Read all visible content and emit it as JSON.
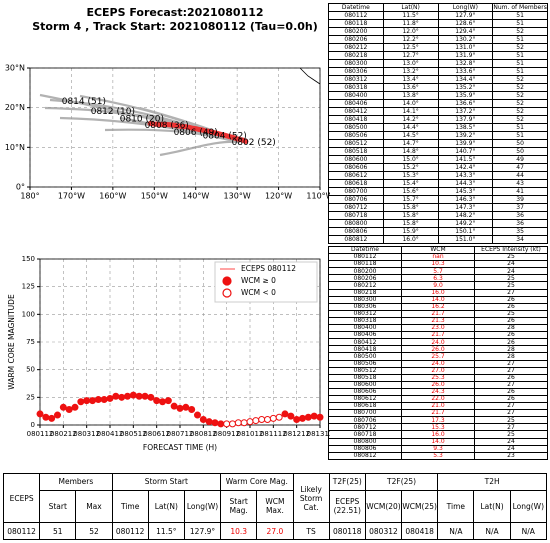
{
  "chart_data": [
    {
      "type": "line",
      "title": "ECEPS Forecast:2021080112",
      "subtitle": "Storm 4 , Track Start: 2021080112 (Tau=0.0h)",
      "x": [
        127.9,
        128.6,
        129.4,
        130.2,
        131.0,
        131.9,
        132.8,
        133.6,
        134.4,
        135.2,
        135.9,
        136.6,
        137.2,
        137.9,
        138.5,
        139.2,
        139.9,
        140.7,
        141.5,
        142.4,
        143.3,
        144.3,
        145.3,
        146.3,
        147.3,
        148.2,
        149.2,
        150.1,
        151.0
      ],
      "values": [
        11.5,
        11.8,
        12.0,
        12.2,
        12.5,
        12.7,
        13.0,
        13.2,
        13.4,
        13.6,
        13.8,
        14.0,
        14.1,
        14.2,
        14.4,
        14.5,
        14.7,
        14.8,
        15.0,
        15.2,
        15.3,
        15.4,
        15.6,
        15.7,
        15.8,
        15.8,
        15.8,
        15.9,
        16.0
      ],
      "color": "#ee3333",
      "xlim": [
        180,
        110
      ],
      "ylim": [
        0,
        30
      ],
      "xticks": [
        {
          "value": 180,
          "label": "180°"
        },
        {
          "value": 170,
          "label": "170°W"
        },
        {
          "value": 160,
          "label": "160°W"
        },
        {
          "value": 150,
          "label": "150°W"
        },
        {
          "value": 140,
          "label": "140°W"
        },
        {
          "value": 130,
          "label": "130°W"
        },
        {
          "value": 120,
          "label": "120°W"
        },
        {
          "value": 110,
          "label": "110°W"
        }
      ],
      "yticks": [
        {
          "value": 0,
          "label": "0°"
        },
        {
          "value": 10,
          "label": "10°N"
        },
        {
          "value": 20,
          "label": "20°N"
        },
        {
          "value": 30,
          "label": "30°N"
        }
      ],
      "grid": true,
      "annotations": [
        {
          "text": "0814 (51)",
          "x": 167,
          "y": 21.5
        },
        {
          "text": "0812 (10)",
          "x": 160,
          "y": 19
        },
        {
          "text": "0810 (20)",
          "x": 153,
          "y": 17.2
        },
        {
          "text": "0808 (36)",
          "x": 147,
          "y": 15.5
        },
        {
          "text": "0806 (49)",
          "x": 140,
          "y": 13.8
        },
        {
          "text": "0804 (52)",
          "x": 133,
          "y": 12.8
        },
        {
          "text": "0802 (52)",
          "x": 126,
          "y": 11.2
        }
      ]
    },
    {
      "type": "scatter",
      "xlabel": "FORECAST TIME (H)",
      "ylabel": "WARM CORE MAGNITUDE",
      "xlim": [
        0,
        288
      ],
      "ylim": [
        0,
        150
      ],
      "xticks": [
        {
          "value": 0,
          "label": "080112"
        },
        {
          "value": 24,
          "label": "080212"
        },
        {
          "value": 48,
          "label": "080312"
        },
        {
          "value": 72,
          "label": "080412"
        },
        {
          "value": 96,
          "label": "080512"
        },
        {
          "value": 120,
          "label": "080612"
        },
        {
          "value": 144,
          "label": "080712"
        },
        {
          "value": 168,
          "label": "080812"
        },
        {
          "value": 192,
          "label": "080912"
        },
        {
          "value": 216,
          "label": "081012"
        },
        {
          "value": 240,
          "label": "081112"
        },
        {
          "value": 264,
          "label": "081212"
        },
        {
          "value": 288,
          "label": "081312"
        }
      ],
      "yticks": [
        0,
        25,
        50,
        75,
        100,
        125,
        150
      ],
      "grid": true,
      "legend": "upper right",
      "series": [
        {
          "name": "ECEPS 080112",
          "color": "#ff6666",
          "style": "line",
          "x": [],
          "values": []
        },
        {
          "name": "WCM ≥ 0",
          "color": "#ee1111",
          "style": "filled",
          "x": [
            0,
            6,
            12,
            18,
            24,
            30,
            36,
            42,
            48,
            54,
            60,
            66,
            72,
            78,
            84,
            90,
            96,
            102,
            108,
            114,
            120,
            126,
            132,
            138,
            144,
            150,
            156,
            162,
            168,
            174,
            180,
            186,
            252,
            258,
            264,
            270,
            276,
            282,
            288
          ],
          "values": [
            10,
            7,
            6,
            9,
            16,
            14,
            16,
            21,
            22,
            22,
            23,
            23,
            24,
            26,
            25,
            26,
            27,
            26,
            26,
            25,
            22,
            21,
            22,
            17,
            15,
            16,
            14,
            9,
            5,
            3,
            2,
            1,
            10,
            8,
            5,
            6,
            7,
            8,
            7
          ]
        },
        {
          "name": "WCM < 0",
          "color": "#ee1111",
          "style": "hollow",
          "x": [
            192,
            198,
            204,
            210,
            216,
            222,
            228,
            234,
            240,
            246
          ],
          "values": [
            1,
            1,
            2,
            2,
            3,
            4,
            5,
            5,
            6,
            7
          ]
        }
      ]
    }
  ],
  "track_table": {
    "header": [
      "Datetime",
      "Lat(N)",
      "Long(W)",
      "Num. of Members"
    ],
    "rows": [
      [
        "080112",
        "11.5°",
        "127.9°",
        "51"
      ],
      [
        "080118",
        "11.8°",
        "128.6°",
        "51"
      ],
      [
        "080200",
        "12.0°",
        "129.4°",
        "52"
      ],
      [
        "080206",
        "12.2°",
        "130.2°",
        "51"
      ],
      [
        "080212",
        "12.5°",
        "131.0°",
        "52"
      ],
      [
        "080218",
        "12.7°",
        "131.9°",
        "51"
      ],
      [
        "080300",
        "13.0°",
        "132.8°",
        "51"
      ],
      [
        "080306",
        "13.2°",
        "133.6°",
        "51"
      ],
      [
        "080312",
        "13.4°",
        "134.4°",
        "52"
      ],
      [
        "080318",
        "13.6°",
        "135.2°",
        "52"
      ],
      [
        "080400",
        "13.8°",
        "135.9°",
        "52"
      ],
      [
        "080406",
        "14.0°",
        "136.6°",
        "52"
      ],
      [
        "080412",
        "14.1°",
        "137.2°",
        "52"
      ],
      [
        "080418",
        "14.2°",
        "137.9°",
        "52"
      ],
      [
        "080500",
        "14.4°",
        "138.5°",
        "51"
      ],
      [
        "080506",
        "14.5°",
        "139.2°",
        "51"
      ],
      [
        "080512",
        "14.7°",
        "139.9°",
        "50"
      ],
      [
        "080518",
        "14.8°",
        "140.7°",
        "50"
      ],
      [
        "080600",
        "15.0°",
        "141.5°",
        "49"
      ],
      [
        "080606",
        "15.2°",
        "142.4°",
        "47"
      ],
      [
        "080612",
        "15.3°",
        "143.3°",
        "44"
      ],
      [
        "080618",
        "15.4°",
        "144.3°",
        "43"
      ],
      [
        "080700",
        "15.6°",
        "145.3°",
        "41"
      ],
      [
        "080706",
        "15.7°",
        "146.3°",
        "39"
      ],
      [
        "080712",
        "15.8°",
        "147.3°",
        "37"
      ],
      [
        "080718",
        "15.8°",
        "148.2°",
        "36"
      ],
      [
        "080800",
        "15.8°",
        "149.2°",
        "36"
      ],
      [
        "080806",
        "15.9°",
        "150.1°",
        "35"
      ],
      [
        "080812",
        "16.0°",
        "151.0°",
        "34"
      ]
    ]
  },
  "wcm_table": {
    "header": [
      "Datetime",
      "WCM",
      "ECEPS Intensity (kt)"
    ],
    "rows": [
      [
        "080112",
        "nan",
        "25"
      ],
      [
        "080118",
        "10.3",
        "24"
      ],
      [
        "080200",
        "5.7",
        "24"
      ],
      [
        "080206",
        "6.3",
        "25"
      ],
      [
        "080212",
        "9.0",
        "25"
      ],
      [
        "080218",
        "16.0",
        "27"
      ],
      [
        "080300",
        "14.0",
        "26"
      ],
      [
        "080306",
        "16.2",
        "26"
      ],
      [
        "080312",
        "21.7",
        "25"
      ],
      [
        "080318",
        "21.3",
        "26"
      ],
      [
        "080400",
        "23.0",
        "28"
      ],
      [
        "080406",
        "21.7",
        "26"
      ],
      [
        "080412",
        "24.0",
        "26"
      ],
      [
        "080418",
        "26.0",
        "28"
      ],
      [
        "080500",
        "25.7",
        "28"
      ],
      [
        "080506",
        "24.0",
        "27"
      ],
      [
        "080512",
        "27.0",
        "27"
      ],
      [
        "080518",
        "25.3",
        "26"
      ],
      [
        "080600",
        "26.0",
        "27"
      ],
      [
        "080606",
        "24.3",
        "26"
      ],
      [
        "080612",
        "22.0",
        "26"
      ],
      [
        "080618",
        "21.0",
        "27"
      ],
      [
        "080700",
        "21.7",
        "27"
      ],
      [
        "080706",
        "17.3",
        "25"
      ],
      [
        "080712",
        "15.3",
        "27"
      ],
      [
        "080718",
        "16.0",
        "25"
      ],
      [
        "080800",
        "14.0",
        "24"
      ],
      [
        "080806",
        "9.3",
        "24"
      ],
      [
        "080812",
        "5.3",
        "23"
      ]
    ]
  },
  "summary_table": {
    "header1": [
      "ECEPS",
      "Members",
      "Storm Start",
      "Warm Core Mag.",
      "Likely Storm Cat.",
      "T2F(25)",
      "T2F(25)",
      "T2H"
    ],
    "header2": [
      "Start",
      "Max",
      "Time",
      "Lat(N)",
      "Long(W)",
      "Start Mag.",
      "WCM Max.",
      "ECEPS (22.51)",
      "WCM(20)",
      "WCM(25)",
      "Time",
      "Lat(N)",
      "Long(W)"
    ],
    "row": [
      "080112",
      "51",
      "52",
      "080112",
      "11.5°",
      "127.9°",
      "10.3",
      "27.0",
      "TS",
      "080118",
      "080312",
      "080418",
      "N/A",
      "N/A",
      "N/A"
    ]
  }
}
